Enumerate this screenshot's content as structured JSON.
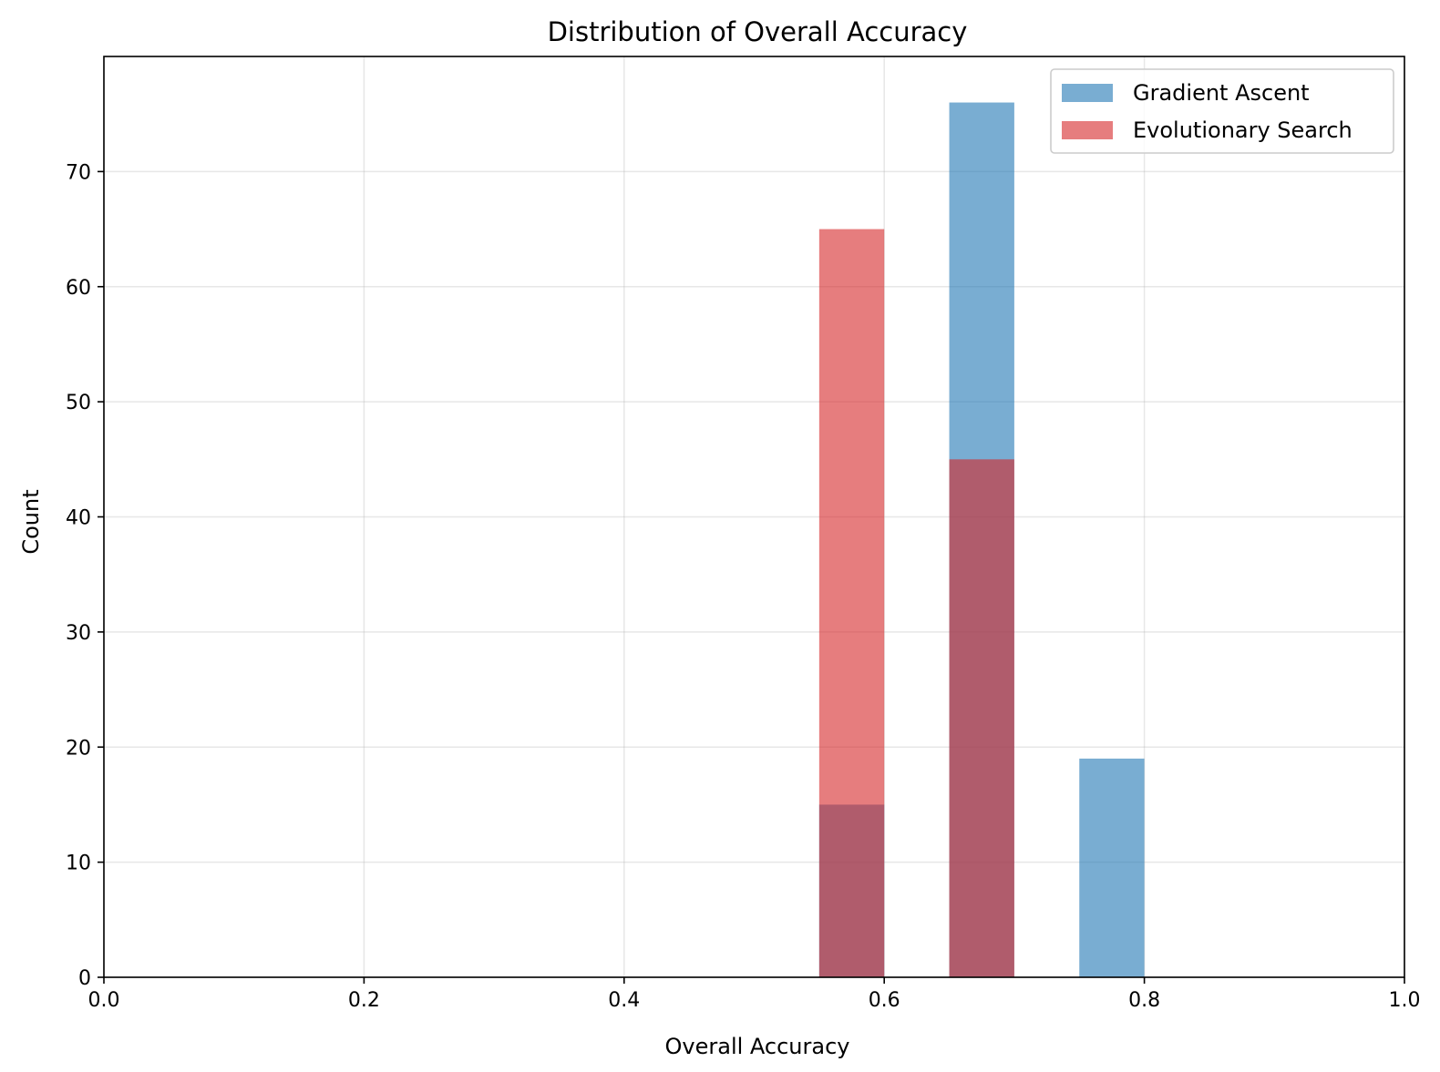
{
  "chart_data": {
    "type": "bar",
    "title": "Distribution of Overall Accuracy",
    "xlabel": "Overall Accuracy",
    "ylabel": "Count",
    "xlim": [
      0.0,
      1.0
    ],
    "ylim": [
      0,
      80
    ],
    "xticks": [
      "0.0",
      "0.2",
      "0.4",
      "0.6",
      "0.8",
      "1.0"
    ],
    "yticks": [
      "0",
      "10",
      "20",
      "30",
      "40",
      "50",
      "60",
      "70"
    ],
    "grid": true,
    "legend_position": "top-right",
    "bin_width": 0.05,
    "series": [
      {
        "name": "Gradient Ascent",
        "color": "#1f77b4",
        "alpha": 0.6,
        "bins": [
          {
            "start": 0.55,
            "end": 0.6,
            "value": 15
          },
          {
            "start": 0.65,
            "end": 0.7,
            "value": 76
          },
          {
            "start": 0.75,
            "end": 0.8,
            "value": 19
          }
        ]
      },
      {
        "name": "Evolutionary Search",
        "color": "#d62728",
        "alpha": 0.6,
        "bins": [
          {
            "start": 0.55,
            "end": 0.6,
            "value": 65
          },
          {
            "start": 0.65,
            "end": 0.7,
            "value": 45
          }
        ]
      }
    ]
  }
}
